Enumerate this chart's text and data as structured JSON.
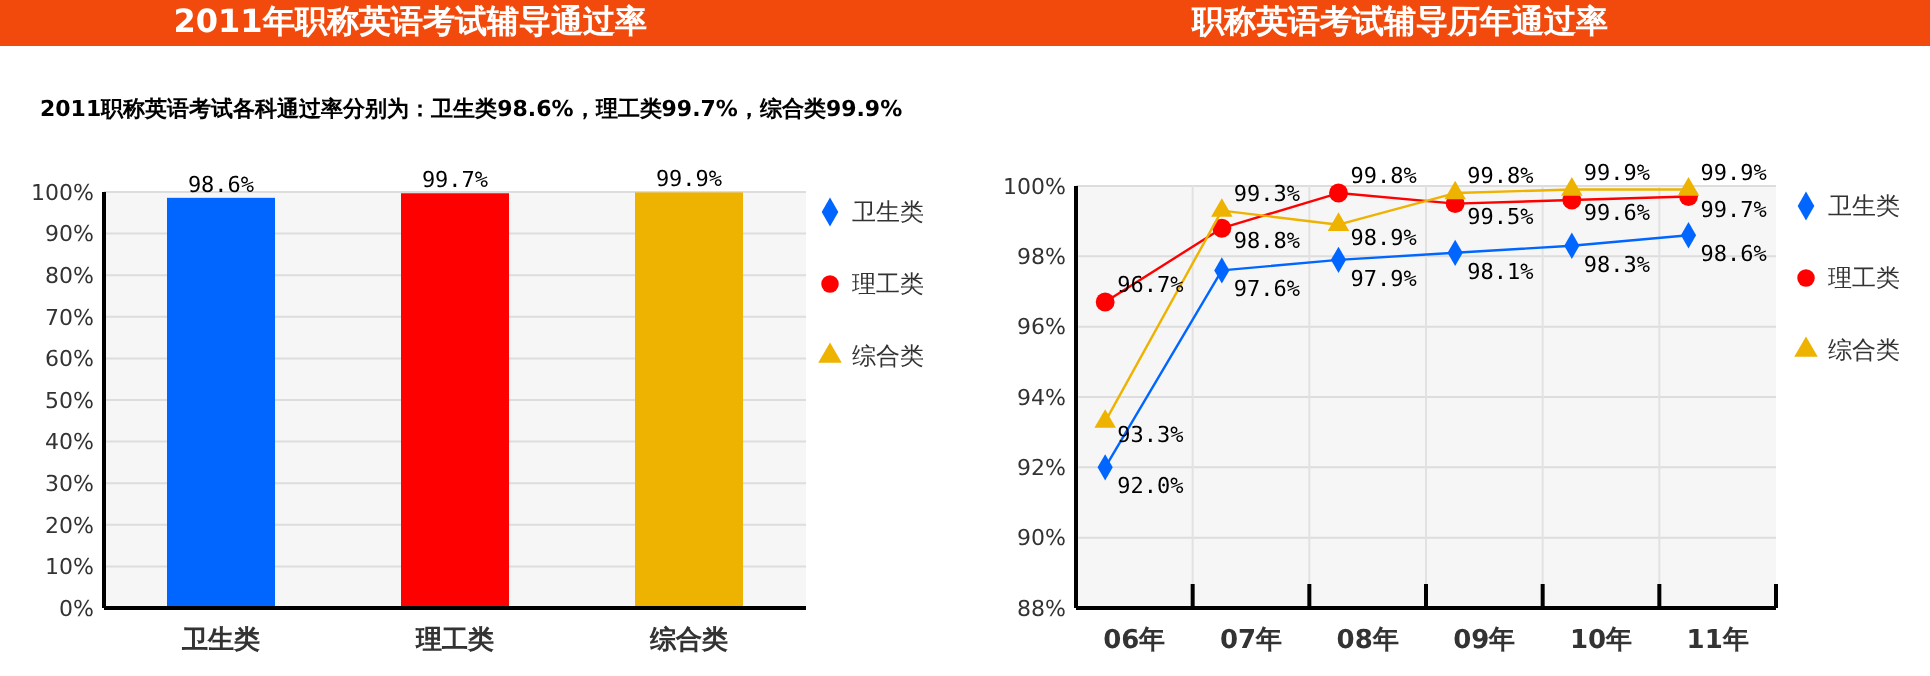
{
  "chart_data": [
    {
      "type": "bar",
      "title": "2011年职称英语考试辅导通过率",
      "subtitle": "2011职称英语考试各科通过率分别为：卫生类98.6%，理工类99.7%，综合类99.9%",
      "categories": [
        "卫生类",
        "理工类",
        "综合类"
      ],
      "series": [
        {
          "name": "卫生类",
          "color": "#0066ff",
          "marker": "diamond",
          "values": [
            98.6,
            null,
            null
          ],
          "value_labels": [
            "98.6%",
            null,
            null
          ]
        },
        {
          "name": "理工类",
          "color": "#ff0000",
          "marker": "circle",
          "values": [
            null,
            99.7,
            null
          ],
          "value_labels": [
            null,
            "99.7%",
            null
          ]
        },
        {
          "name": "综合类",
          "color": "#eeb200",
          "marker": "triangle",
          "values": [
            null,
            null,
            99.9
          ],
          "value_labels": [
            null,
            null,
            "99.9%"
          ]
        }
      ],
      "ylim": [
        0,
        100
      ],
      "yticks": [
        {
          "value": 0,
          "label": "0%"
        },
        {
          "value": 10,
          "label": "10%"
        },
        {
          "value": 20,
          "label": "20%"
        },
        {
          "value": 30,
          "label": "30%"
        },
        {
          "value": 40,
          "label": "40%"
        },
        {
          "value": 50,
          "label": "50%"
        },
        {
          "value": 60,
          "label": "60%"
        },
        {
          "value": 70,
          "label": "70%"
        },
        {
          "value": 80,
          "label": "80%"
        },
        {
          "value": 90,
          "label": "90%"
        },
        {
          "value": 100,
          "label": "100%"
        }
      ],
      "grid": "y",
      "legend": "right"
    },
    {
      "type": "line",
      "title": "职称英语考试辅导历年通过率",
      "categories": [
        "06年",
        "07年",
        "08年",
        "09年",
        "10年",
        "11年"
      ],
      "series": [
        {
          "name": "卫生类",
          "color": "#0066ff",
          "marker": "diamond",
          "values": [
            92.0,
            97.6,
            97.9,
            98.1,
            98.3,
            98.6
          ],
          "value_labels": [
            "92.0%",
            "97.6%",
            "97.9%",
            "98.1%",
            "98.3%",
            "98.6%"
          ]
        },
        {
          "name": "理工类",
          "color": "#ff0000",
          "marker": "circle",
          "values": [
            96.7,
            98.8,
            99.8,
            99.5,
            99.6,
            99.7
          ],
          "value_labels": [
            "96.7%",
            "98.8%",
            "99.8%",
            "99.5%",
            "99.6%",
            "99.7%"
          ]
        },
        {
          "name": "综合类",
          "color": "#eeb200",
          "marker": "triangle",
          "values": [
            93.3,
            99.3,
            98.9,
            99.8,
            99.9,
            99.9
          ],
          "value_labels": [
            "93.3%",
            "99.3%",
            "98.9%",
            "99.8%",
            "99.9%",
            "99.9%"
          ]
        }
      ],
      "ylim": [
        88,
        100
      ],
      "yticks": [
        {
          "value": 88,
          "label": "88%"
        },
        {
          "value": 90,
          "label": "90%"
        },
        {
          "value": 92,
          "label": "92%"
        },
        {
          "value": 94,
          "label": "94%"
        },
        {
          "value": 96,
          "label": "96%"
        },
        {
          "value": 98,
          "label": "98%"
        },
        {
          "value": 100,
          "label": "100%"
        }
      ],
      "grid": true,
      "legend": "right"
    }
  ]
}
